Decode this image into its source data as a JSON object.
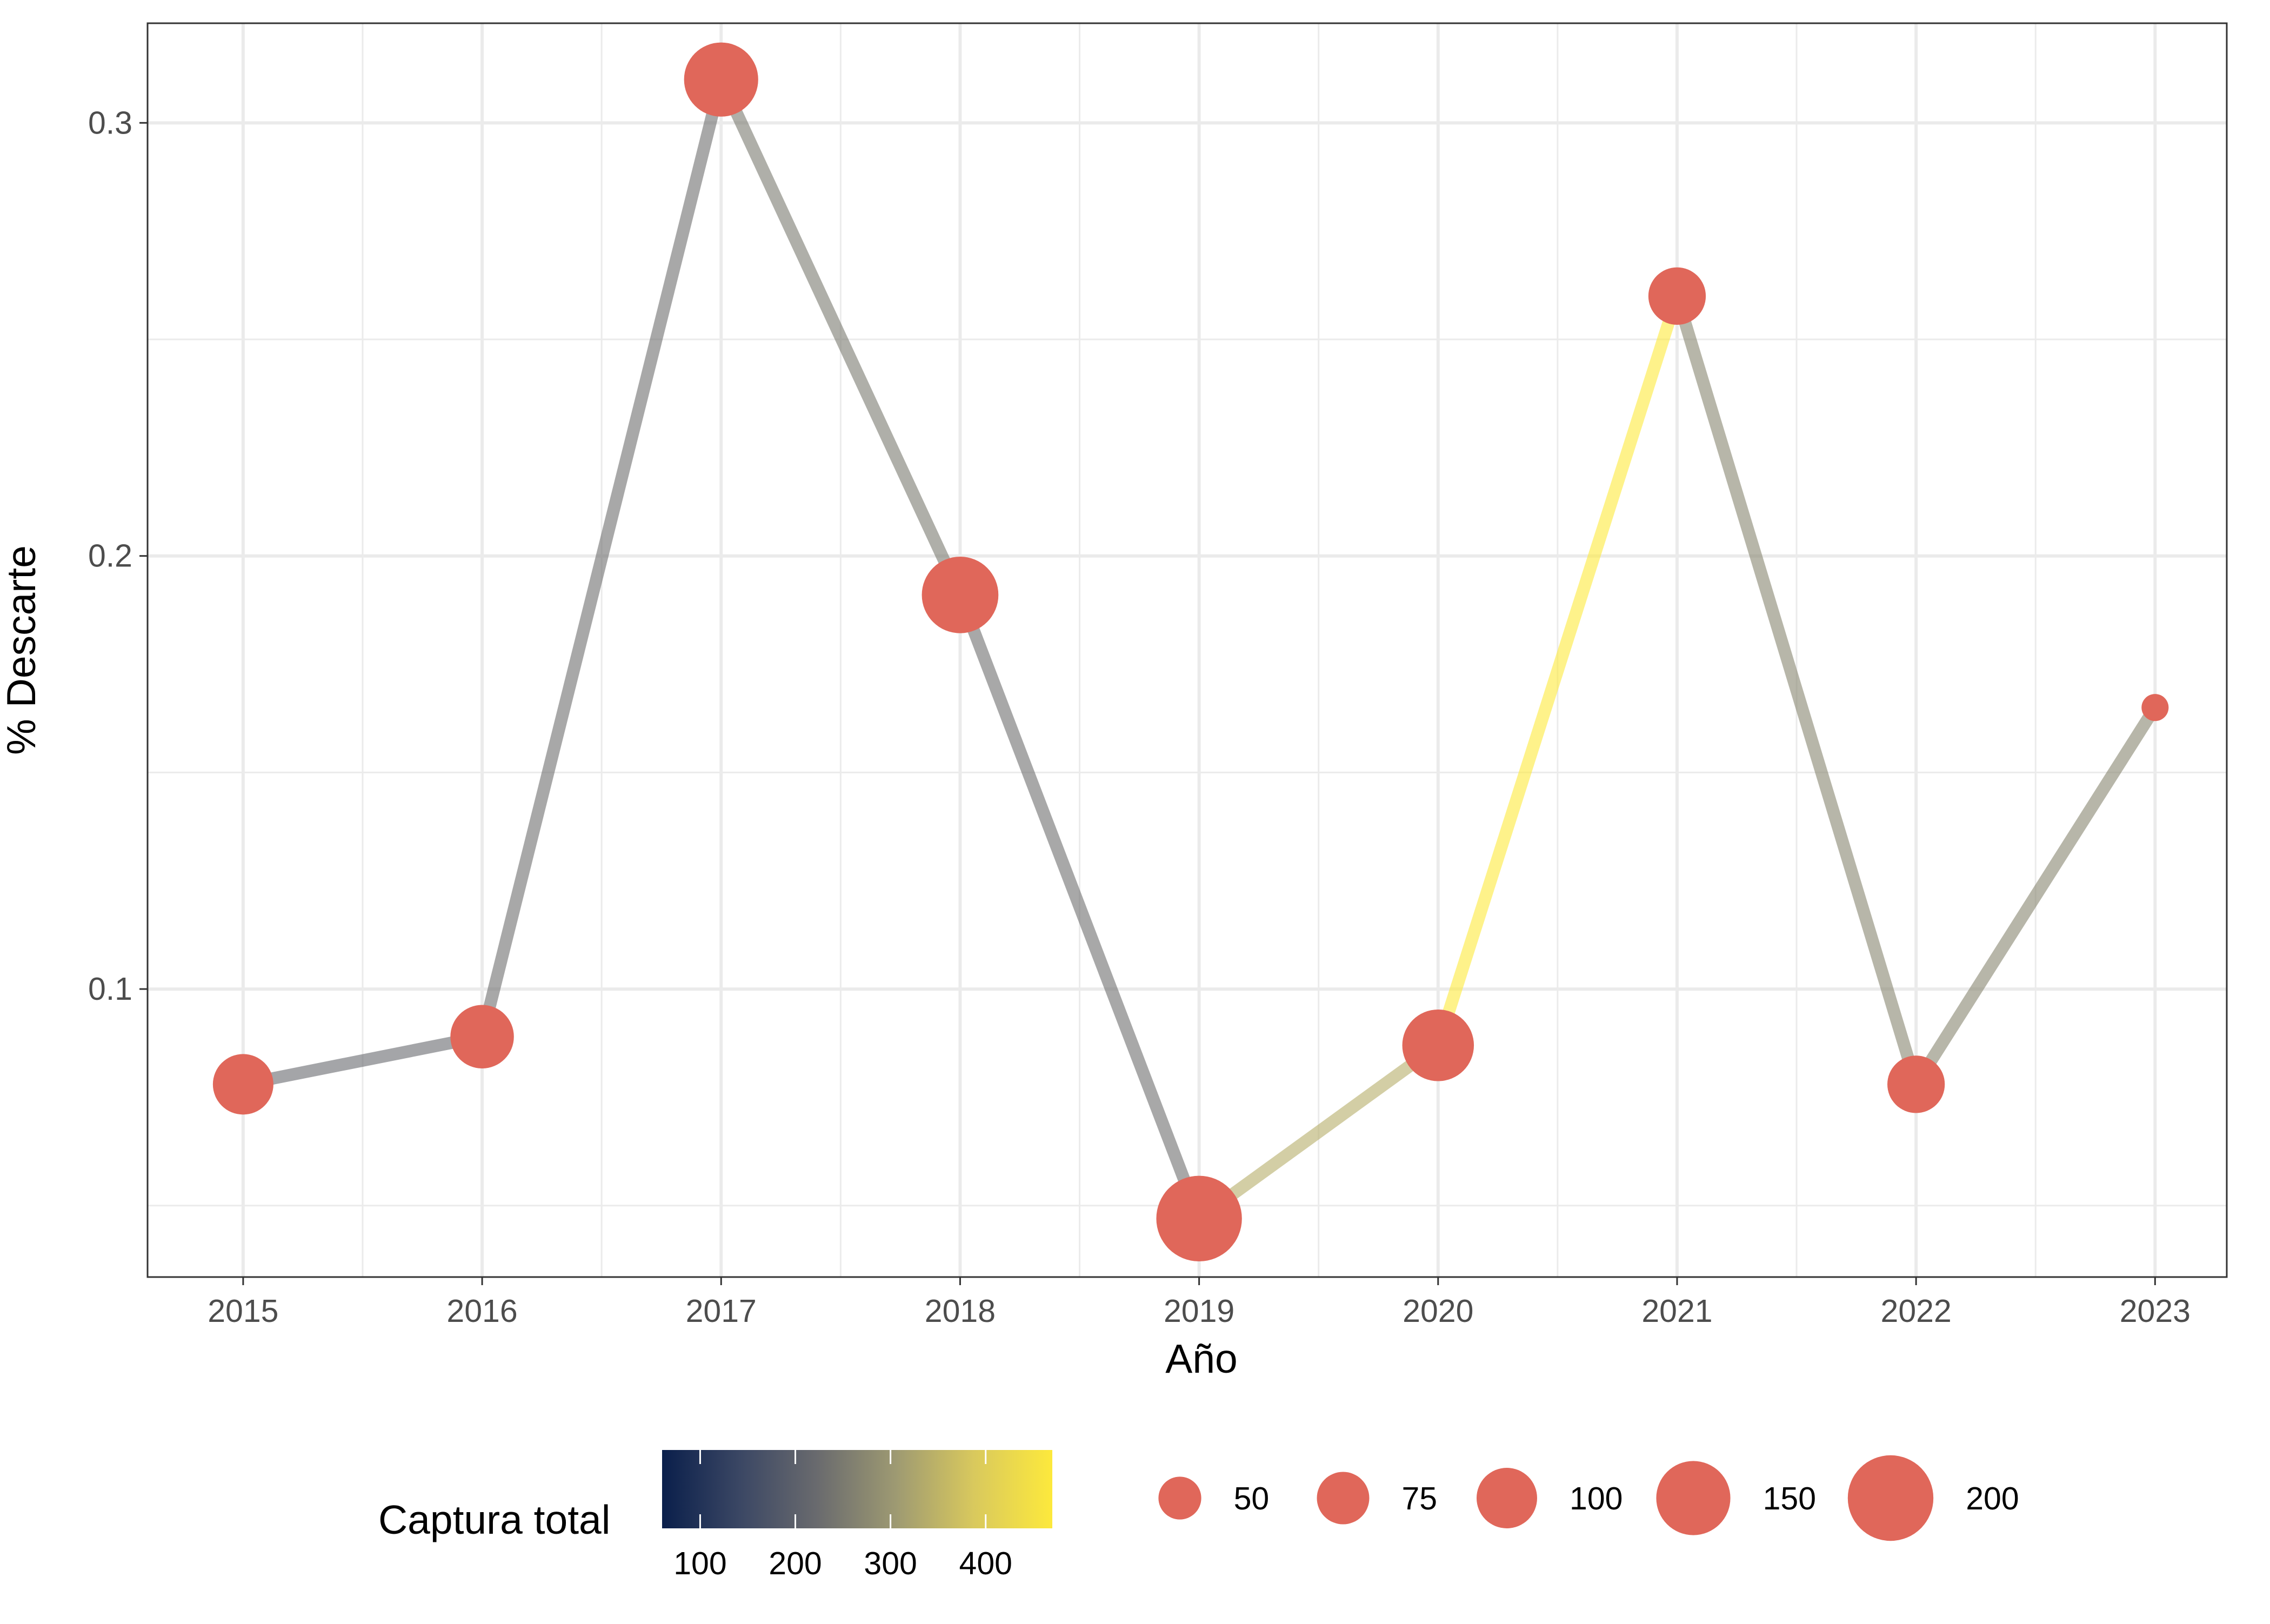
{
  "chart_data": {
    "type": "line",
    "title": "",
    "xlabel": "Año",
    "ylabel": "% Descarte",
    "x": [
      2015,
      2016,
      2017,
      2018,
      2019,
      2020,
      2021,
      2022,
      2023
    ],
    "y": [
      0.078,
      0.089,
      0.31,
      0.191,
      0.047,
      0.087,
      0.26,
      0.078,
      0.165
    ],
    "size_values": [
      100,
      110,
      150,
      160,
      200,
      140,
      90,
      90,
      20
    ],
    "segment_captura_total": [
      220,
      230,
      250,
      230,
      340,
      470,
      270,
      270
    ],
    "xlim": [
      2014.6,
      2023.3
    ],
    "ylim": [
      0.0335,
      0.323
    ],
    "yticks": [
      0.1,
      0.2,
      0.3
    ],
    "ytick_labels": [
      "0.1",
      "0.2",
      "0.3"
    ],
    "xticks": [
      2015,
      2016,
      2017,
      2018,
      2019,
      2020,
      2021,
      2022,
      2023
    ],
    "xtick_labels": [
      "2015",
      "2016",
      "2017",
      "2018",
      "2019",
      "2020",
      "2021",
      "2022",
      "2023"
    ],
    "grid": true,
    "point_color": "#E0675A",
    "legend_position": "bottom",
    "color_legend": {
      "title": "Captura total",
      "range": [
        60,
        470
      ],
      "ticks": [
        100,
        200,
        300,
        400
      ],
      "tick_labels": [
        "100",
        "200",
        "300",
        "400"
      ],
      "colors": [
        "#0A1F4B",
        "#3B4764",
        "#6A6B6E",
        "#9E9A72",
        "#D9C95D",
        "#FDE93C"
      ]
    },
    "size_legend": {
      "values": [
        50,
        75,
        100,
        150,
        200
      ],
      "labels": [
        "50",
        "75",
        "100",
        "150",
        "200"
      ]
    }
  }
}
